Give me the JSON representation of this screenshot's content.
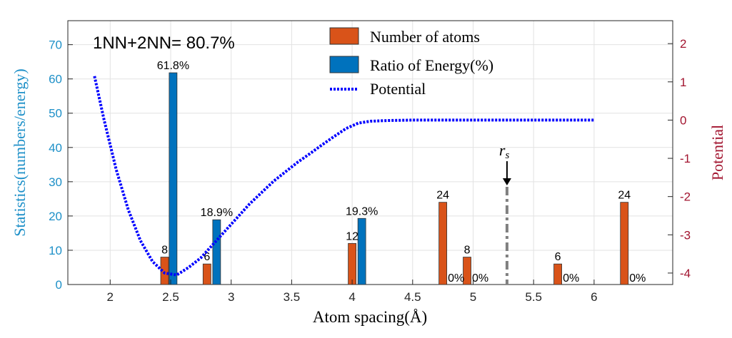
{
  "chart_data": {
    "type": "bar",
    "annotation": "1NN+2NN= 80.7%",
    "xlabel": "Atom spacing(Å)",
    "ylabel_left": "Statistics(numbers/energy)",
    "ylabel_right": "Potential",
    "xlim": [
      1.65,
      6.65
    ],
    "ylim_left": [
      0,
      77
    ],
    "ylim_right": [
      -4.3,
      2.6
    ],
    "xticks": [
      "2",
      "2.5",
      "3",
      "3.5",
      "4",
      "4.5",
      "5",
      "5.5",
      "6"
    ],
    "xtick_values": [
      2,
      2.5,
      3,
      3.5,
      4,
      4.5,
      5,
      5.5,
      6
    ],
    "yticks_left": [
      "0",
      "10",
      "20",
      "30",
      "40",
      "50",
      "60",
      "70"
    ],
    "ytick_values_left": [
      0,
      10,
      20,
      30,
      40,
      50,
      60,
      70
    ],
    "yticks_right": [
      "-4",
      "-3",
      "-2",
      "-1",
      "0",
      "1",
      "2"
    ],
    "ytick_values_right": [
      -4,
      -3,
      -2,
      -1,
      0,
      1,
      2
    ],
    "legend": [
      {
        "label": "Number of atoms",
        "color": "#D95319",
        "kind": "bar"
      },
      {
        "label": "Ratio of Energy(%)",
        "color": "#0072BD",
        "kind": "bar"
      },
      {
        "label": "Potential",
        "color": "#0000FF",
        "kind": "dotted-line"
      }
    ],
    "series": [
      {
        "name": "Number of atoms",
        "color": "#D95319",
        "x": [
          2.45,
          2.8,
          4.0,
          4.75,
          4.95,
          5.7,
          6.25
        ],
        "values": [
          8,
          6,
          12,
          24,
          8,
          6,
          24
        ],
        "labels": [
          "8",
          "6",
          "12",
          "24",
          "8",
          "6",
          "24"
        ]
      },
      {
        "name": "Ratio of Energy(%)",
        "color": "#0072BD",
        "x": [
          2.52,
          2.88,
          4.08,
          4.83,
          5.03,
          5.78,
          6.33
        ],
        "values": [
          61.8,
          18.9,
          19.3,
          0,
          0,
          0,
          0
        ],
        "labels": [
          "61.8%",
          "18.9%",
          "19.3%",
          "0%",
          "0%",
          "0%",
          "0%"
        ]
      }
    ],
    "potential": {
      "x": [
        1.87,
        1.95,
        2.05,
        2.15,
        2.25,
        2.35,
        2.45,
        2.55,
        2.65,
        2.75,
        2.85,
        2.95,
        3.05,
        3.15,
        3.25,
        3.35,
        3.45,
        3.55,
        3.65,
        3.75,
        3.85,
        3.95,
        4.05,
        4.15,
        4.3,
        4.5,
        5.0,
        5.5,
        6.0
      ],
      "y": [
        1.15,
        0.0,
        -1.3,
        -2.35,
        -3.15,
        -3.7,
        -4.0,
        -4.05,
        -3.85,
        -3.6,
        -3.25,
        -2.9,
        -2.55,
        -2.2,
        -1.9,
        -1.6,
        -1.35,
        -1.1,
        -0.88,
        -0.65,
        -0.43,
        -0.22,
        -0.08,
        -0.03,
        -0.01,
        0,
        0,
        0,
        0
      ]
    },
    "rs_marker": {
      "x": 5.28,
      "label": "r",
      "subscript": "s",
      "line_top": 28.5
    }
  }
}
